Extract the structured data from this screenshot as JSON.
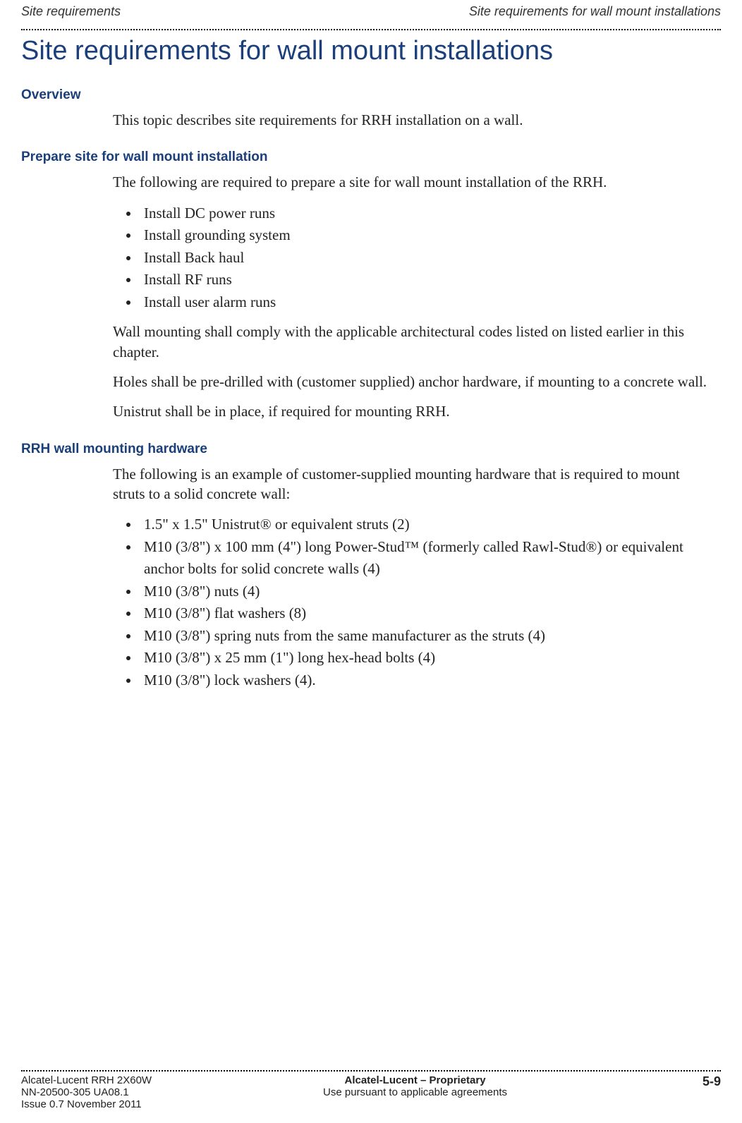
{
  "header": {
    "left": "Site requirements",
    "right": "Site requirements for wall mount installations"
  },
  "title": "Site requirements for wall mount installations",
  "sections": {
    "overview": {
      "heading": "Overview",
      "para1": "This topic describes site requirements for RRH installation on a wall."
    },
    "prepare": {
      "heading": "Prepare site for wall mount installation",
      "intro": "The following are required to prepare a site for wall mount installation of the RRH.",
      "items": [
        "Install DC power runs",
        "Install grounding system",
        "Install Back haul",
        "Install RF runs",
        "Install user alarm runs"
      ],
      "para_after_1": "Wall mounting shall comply with the applicable architectural codes listed on listed earlier in this chapter.",
      "para_after_2": "Holes shall be pre-drilled with (customer supplied) anchor hardware, if mounting to a concrete wall.",
      "para_after_3": "Unistrut shall be in place, if required for mounting RRH."
    },
    "hardware": {
      "heading": "RRH wall mounting hardware",
      "intro": "The following is an example of customer-supplied mounting hardware that is required to mount struts to a solid concrete wall:",
      "items": [
        "1.5\" x 1.5\" Unistrut® or equivalent struts (2)",
        "M10 (3/8\") x 100 mm (4\") long Power-Stud™ (formerly called Rawl-Stud®) or equivalent anchor bolts for solid concrete walls (4)",
        "M10 (3/8\") nuts (4)",
        "M10 (3/8\") flat washers (8)",
        "M10 (3/8\") spring nuts from the same manufacturer as the struts (4)",
        "M10 (3/8\") x 25 mm (1\") long hex-head bolts (4)",
        "M10 (3/8\") lock washers (4)."
      ]
    }
  },
  "footer": {
    "left_line1": "Alcatel-Lucent RRH 2X60W",
    "left_line2": "NN-20500-305 UA08.1",
    "left_line3": "Issue 0.7   November 2011",
    "center_line1": "Alcatel-Lucent – Proprietary",
    "center_line2": "Use pursuant to applicable agreements",
    "right": "5-9"
  }
}
